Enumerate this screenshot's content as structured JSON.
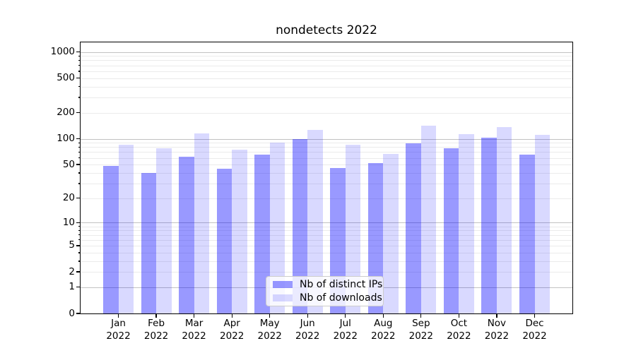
{
  "chart_data": {
    "type": "bar",
    "title": "nondetects 2022",
    "categories": [
      "Jan",
      "Feb",
      "Mar",
      "Apr",
      "May",
      "Jun",
      "Jul",
      "Aug",
      "Sep",
      "Oct",
      "Nov",
      "Dec"
    ],
    "category_year": "2022",
    "series": [
      {
        "name": "Nb of distinct IPs",
        "color": "rgba(0,0,255,0.4)",
        "values": [
          48,
          40,
          62,
          45,
          66,
          100,
          46,
          52,
          89,
          77,
          103,
          66
        ]
      },
      {
        "name": "Nb of downloads",
        "color": "rgba(0,0,255,0.15)",
        "values": [
          86,
          77,
          116,
          75,
          91,
          127,
          85,
          67,
          142,
          114,
          137,
          112
        ]
      }
    ],
    "xlabel": "",
    "ylabel": "",
    "yscale": "log1p",
    "ylim": [
      0,
      1286
    ],
    "yticks": [
      1000,
      500,
      200,
      100,
      50,
      20,
      10,
      5,
      2,
      1,
      0
    ],
    "grid": {
      "major_values": [
        1,
        10,
        100,
        1000
      ],
      "minor_values": [
        2,
        3,
        4,
        5,
        6,
        7,
        8,
        9,
        20,
        30,
        40,
        50,
        60,
        70,
        80,
        90,
        200,
        300,
        400,
        500,
        600,
        700,
        800,
        900
      ],
      "major_color": "#c2c2c2",
      "minor_color": "#ebebeb"
    },
    "legend_position": "lower center inside"
  },
  "colors": {
    "background": "#ffffff",
    "spine": "#000000",
    "tick_label": "#000000",
    "title": "#000000",
    "legend_border": "#cccccc",
    "legend_background": "rgba(255,255,255,0.8)"
  }
}
